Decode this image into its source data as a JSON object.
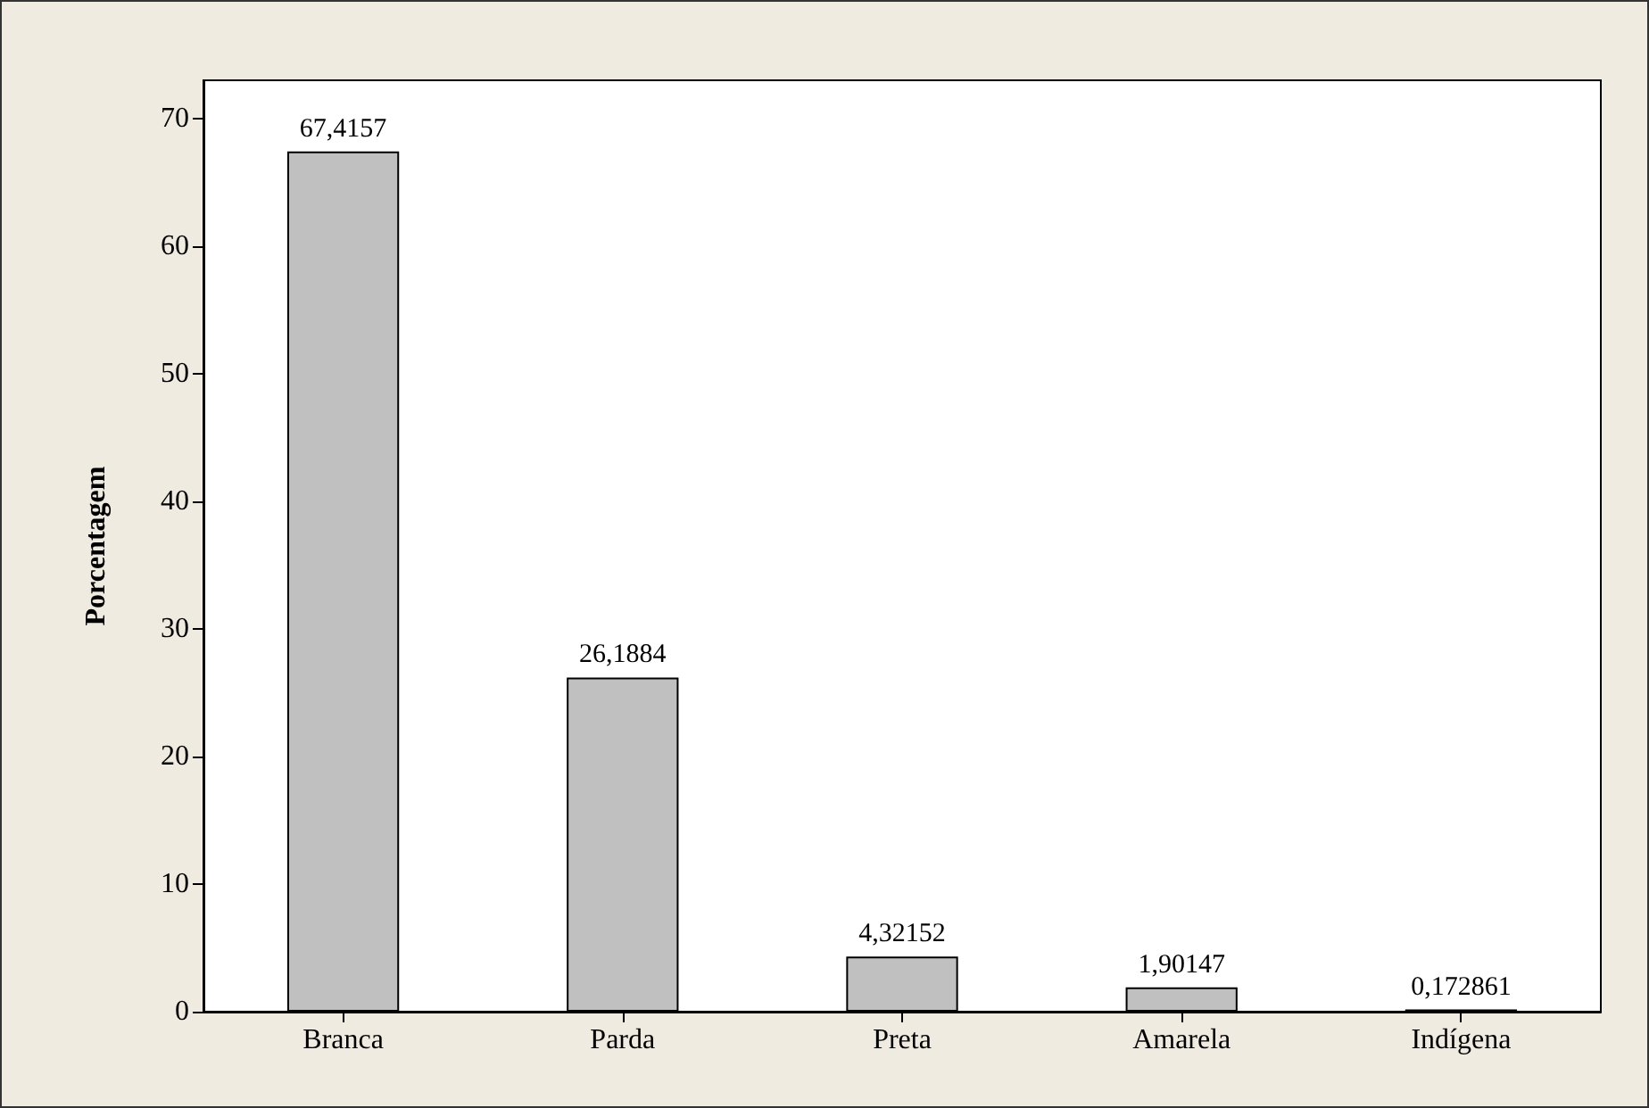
{
  "chart_data": {
    "type": "bar",
    "ylabel": "Porcentagem",
    "categories": [
      "Branca",
      "Parda",
      "Preta",
      "Amarela",
      "Indígena"
    ],
    "values": [
      67.4157,
      26.1884,
      4.32152,
      1.90147,
      0.172861
    ],
    "value_labels": [
      "67,4157",
      "26,1884",
      "4,32152",
      "1,90147",
      "0,172861"
    ],
    "color": "#c0c0c0",
    "ylim": [
      0,
      73
    ],
    "yticks": [
      0,
      10,
      20,
      30,
      40,
      50,
      60,
      70
    ],
    "grid": false
  }
}
